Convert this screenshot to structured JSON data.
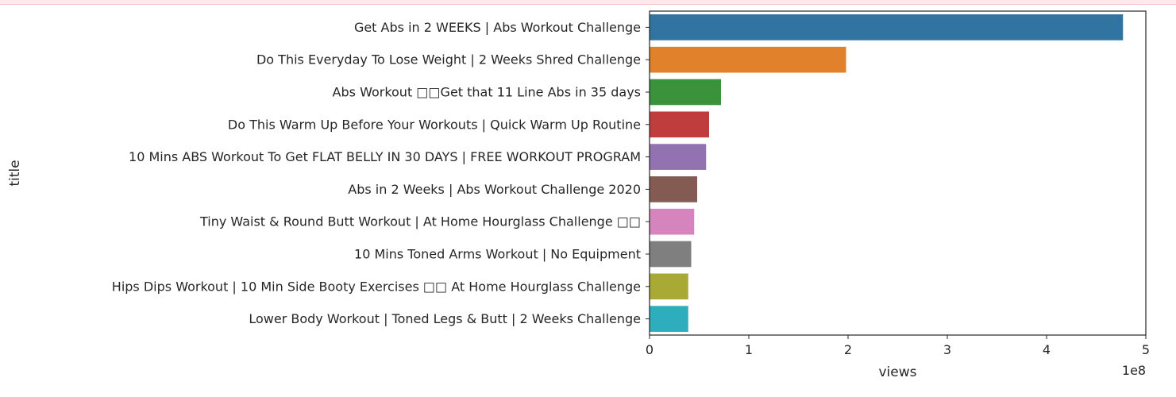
{
  "chart_data": {
    "type": "bar",
    "orientation": "horizontal",
    "title": "",
    "xlabel": "views",
    "ylabel": "title",
    "x_offset_text": "1e8",
    "xlim": [
      0,
      5
    ],
    "x_ticks": [
      "0",
      "1",
      "2",
      "3",
      "4",
      "5"
    ],
    "grid": false,
    "legend": "none",
    "categories": [
      "Get Abs in 2 WEEKS | Abs Workout Challenge",
      "Do This Everyday To Lose Weight | 2 Weeks Shred Challenge",
      "Abs Workout □□Get that 11 Line Abs in 35 days",
      "Do This Warm Up Before Your Workouts | Quick Warm Up Routine",
      "10 Mins ABS Workout To Get FLAT BELLY IN 30 DAYS | FREE WORKOUT PROGRAM",
      "Abs in 2 Weeks | Abs Workout Challenge 2020",
      "Tiny Waist & Round Butt Workout | At Home Hourglass Challenge □□",
      "10 Mins Toned Arms Workout | No Equipment",
      "Hips Dips Workout | 10 Min Side Booty Exercises □□ At Home Hourglass Challenge",
      "Lower Body Workout | Toned Legs & Butt | 2 Weeks Challenge"
    ],
    "values": [
      4.77,
      1.98,
      0.72,
      0.6,
      0.57,
      0.48,
      0.45,
      0.42,
      0.39,
      0.39
    ],
    "colors": [
      "#3274a1",
      "#e1812c",
      "#3a923a",
      "#c03d3e",
      "#9372b2",
      "#845b53",
      "#d684bd",
      "#7f7f7f",
      "#a9aa35",
      "#2eaebd"
    ]
  }
}
